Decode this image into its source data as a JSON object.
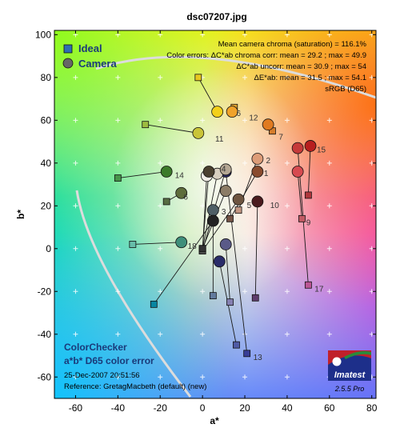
{
  "chart_data": {
    "type": "scatter",
    "title": "dsc07207.jpg",
    "xlabel": "a*",
    "ylabel": "b*",
    "xlim": [
      -70,
      82
    ],
    "ylim": [
      -70,
      102
    ],
    "xticks": [
      -60,
      -40,
      -20,
      0,
      20,
      40,
      60,
      80
    ],
    "yticks": [
      -60,
      -40,
      -20,
      0,
      20,
      40,
      60,
      80,
      100
    ],
    "legend": {
      "position": "top-left",
      "entries": [
        {
          "label": "Ideal",
          "marker": "square",
          "color": "#2e6db4"
        },
        {
          "label": "Camera",
          "marker": "circle",
          "color": "#666666"
        }
      ]
    },
    "stats": [
      "Mean camera chroma (saturation) = 116.1%",
      "Color errors:  ΔC*ab chroma corr:  mean = 29.2 ;  max = 49.9",
      "ΔC*ab uncorr:  mean = 30.9 ;  max = 54",
      "ΔE*ab:  mean = 31.5 ;  max = 54.1",
      "sRGB (D65)"
    ],
    "bottom_title": [
      "ColorChecker",
      "a*b* D65 color error"
    ],
    "date": "25-Dec-2007 20:51:56",
    "reference": "Reference: GretagMacbeth (default) (new)",
    "logo_text": "Imatest",
    "version": "2.5.5  Pro",
    "series": [
      {
        "name": "Ideal",
        "points": [
          {
            "id": 1,
            "a": 13,
            "b": 14,
            "color": "#735244"
          },
          {
            "id": 2,
            "a": 17,
            "b": 18,
            "color": "#c29682"
          },
          {
            "id": 3,
            "a": 5,
            "b": -22,
            "color": "#627a9d"
          },
          {
            "id": 4,
            "a": -17,
            "b": 22,
            "color": "#576c43"
          },
          {
            "id": 5,
            "a": 13,
            "b": -25,
            "color": "#8580b1"
          },
          {
            "id": 6,
            "a": -33,
            "b": 2,
            "color": "#67bdaa"
          },
          {
            "id": 7,
            "a": 33,
            "b": 55,
            "color": "#d67e2c"
          },
          {
            "id": 8,
            "a": 16,
            "b": -45,
            "color": "#505ba6"
          },
          {
            "id": 9,
            "a": 47,
            "b": 14,
            "color": "#c15a63"
          },
          {
            "id": 10,
            "a": 25,
            "b": -23,
            "color": "#5e3c6c"
          },
          {
            "id": 11,
            "a": -27,
            "b": 58,
            "color": "#9dbc40"
          },
          {
            "id": 12,
            "a": 15,
            "b": 66,
            "color": "#e0a32e"
          },
          {
            "id": 13,
            "a": 21,
            "b": -49,
            "color": "#383d96"
          },
          {
            "id": 14,
            "a": -40,
            "b": 33,
            "color": "#469449"
          },
          {
            "id": 15,
            "a": 50,
            "b": 25,
            "color": "#af363c"
          },
          {
            "id": 16,
            "a": -2,
            "b": 80,
            "color": "#e7c71f"
          },
          {
            "id": 17,
            "a": 50,
            "b": -17,
            "color": "#bb5695"
          },
          {
            "id": 18,
            "a": -23,
            "b": -26,
            "color": "#0885a1"
          },
          {
            "id": 19,
            "a": 0,
            "b": -1,
            "color": "#f3f3f2"
          },
          {
            "id": 20,
            "a": 0,
            "b": 0,
            "color": "#c8c8c8"
          },
          {
            "id": 21,
            "a": 0,
            "b": -1,
            "color": "#a0a0a0"
          },
          {
            "id": 22,
            "a": 0,
            "b": 0,
            "color": "#7a7a79"
          },
          {
            "id": 23,
            "a": 0,
            "b": -1,
            "color": "#555555"
          },
          {
            "id": 24,
            "a": 0,
            "b": 0,
            "color": "#343434"
          }
        ]
      },
      {
        "name": "Camera",
        "points": [
          {
            "id": 1,
            "a": 26,
            "b": 36,
            "color": "#8a4b2e"
          },
          {
            "id": 2,
            "a": 26,
            "b": 42,
            "color": "#dd9c78"
          },
          {
            "id": 3,
            "a": 5,
            "b": 18,
            "color": "#4f5f66"
          },
          {
            "id": 4,
            "a": -10,
            "b": 26,
            "color": "#5e6d3c"
          },
          {
            "id": 5,
            "a": 11,
            "b": 2,
            "color": "#5a5a88"
          },
          {
            "id": 6,
            "a": -10,
            "b": 3,
            "color": "#3f8f7a"
          },
          {
            "id": 7,
            "a": 31,
            "b": 58,
            "color": "#e07a20"
          },
          {
            "id": 8,
            "a": 8,
            "b": -6,
            "color": "#2a2d6a"
          },
          {
            "id": 9,
            "a": 45,
            "b": 36,
            "color": "#d74a50"
          },
          {
            "id": 10,
            "a": 26,
            "b": 22,
            "color": "#4b1a1e"
          },
          {
            "id": 11,
            "a": -2,
            "b": 54,
            "color": "#c9c438"
          },
          {
            "id": 12,
            "a": 14,
            "b": 64,
            "color": "#f0a22a"
          },
          {
            "id": 13,
            "a": 11,
            "b": 36,
            "color": "#2a2860"
          },
          {
            "id": 14,
            "a": -17,
            "b": 36,
            "color": "#3b7a2a"
          },
          {
            "id": 15,
            "a": 51,
            "b": 48,
            "color": "#b81e1e"
          },
          {
            "id": 16,
            "a": 7,
            "b": 64,
            "color": "#f3d01a"
          },
          {
            "id": 17,
            "a": 45,
            "b": 47,
            "color": "#c63a3a"
          },
          {
            "id": 18,
            "a": 5,
            "b": 13,
            "color": "#222222"
          },
          {
            "id": 19,
            "a": 2,
            "b": 34,
            "color": "#f0ece6"
          },
          {
            "id": 20,
            "a": 7,
            "b": 35,
            "color": "#d8cfc0"
          },
          {
            "id": 21,
            "a": 11,
            "b": 37,
            "color": "#b5a794"
          },
          {
            "id": 22,
            "a": 11,
            "b": 27,
            "color": "#8c7c66"
          },
          {
            "id": 23,
            "a": 17,
            "b": 23,
            "color": "#6e5440"
          },
          {
            "id": 24,
            "a": 3,
            "b": 36,
            "color": "#4a4030"
          }
        ]
      }
    ],
    "point_labels": [
      {
        "text": "1",
        "a": 29,
        "b": 34
      },
      {
        "text": "2",
        "a": 30,
        "b": 40
      },
      {
        "text": "3",
        "a": 9,
        "b": 16
      },
      {
        "text": "4",
        "a": 9,
        "b": 36
      },
      {
        "text": "5",
        "a": 21,
        "b": 19
      },
      {
        "text": "6",
        "a": -9,
        "b": 23
      },
      {
        "text": "7",
        "a": 36,
        "b": 51
      },
      {
        "text": "9",
        "a": 49,
        "b": 11
      },
      {
        "text": "10",
        "a": 32,
        "b": 19
      },
      {
        "text": "11",
        "a": 6,
        "b": 50
      },
      {
        "text": "12",
        "a": 22,
        "b": 60
      },
      {
        "text": "13",
        "a": 24,
        "b": -52
      },
      {
        "text": "14",
        "a": -13,
        "b": 33
      },
      {
        "text": "15",
        "a": 54,
        "b": 45
      },
      {
        "text": "17",
        "a": 53,
        "b": -20
      },
      {
        "text": "18",
        "a": -7,
        "b": 0
      },
      {
        "text": "6",
        "a": 16,
        "b": 62
      }
    ]
  }
}
